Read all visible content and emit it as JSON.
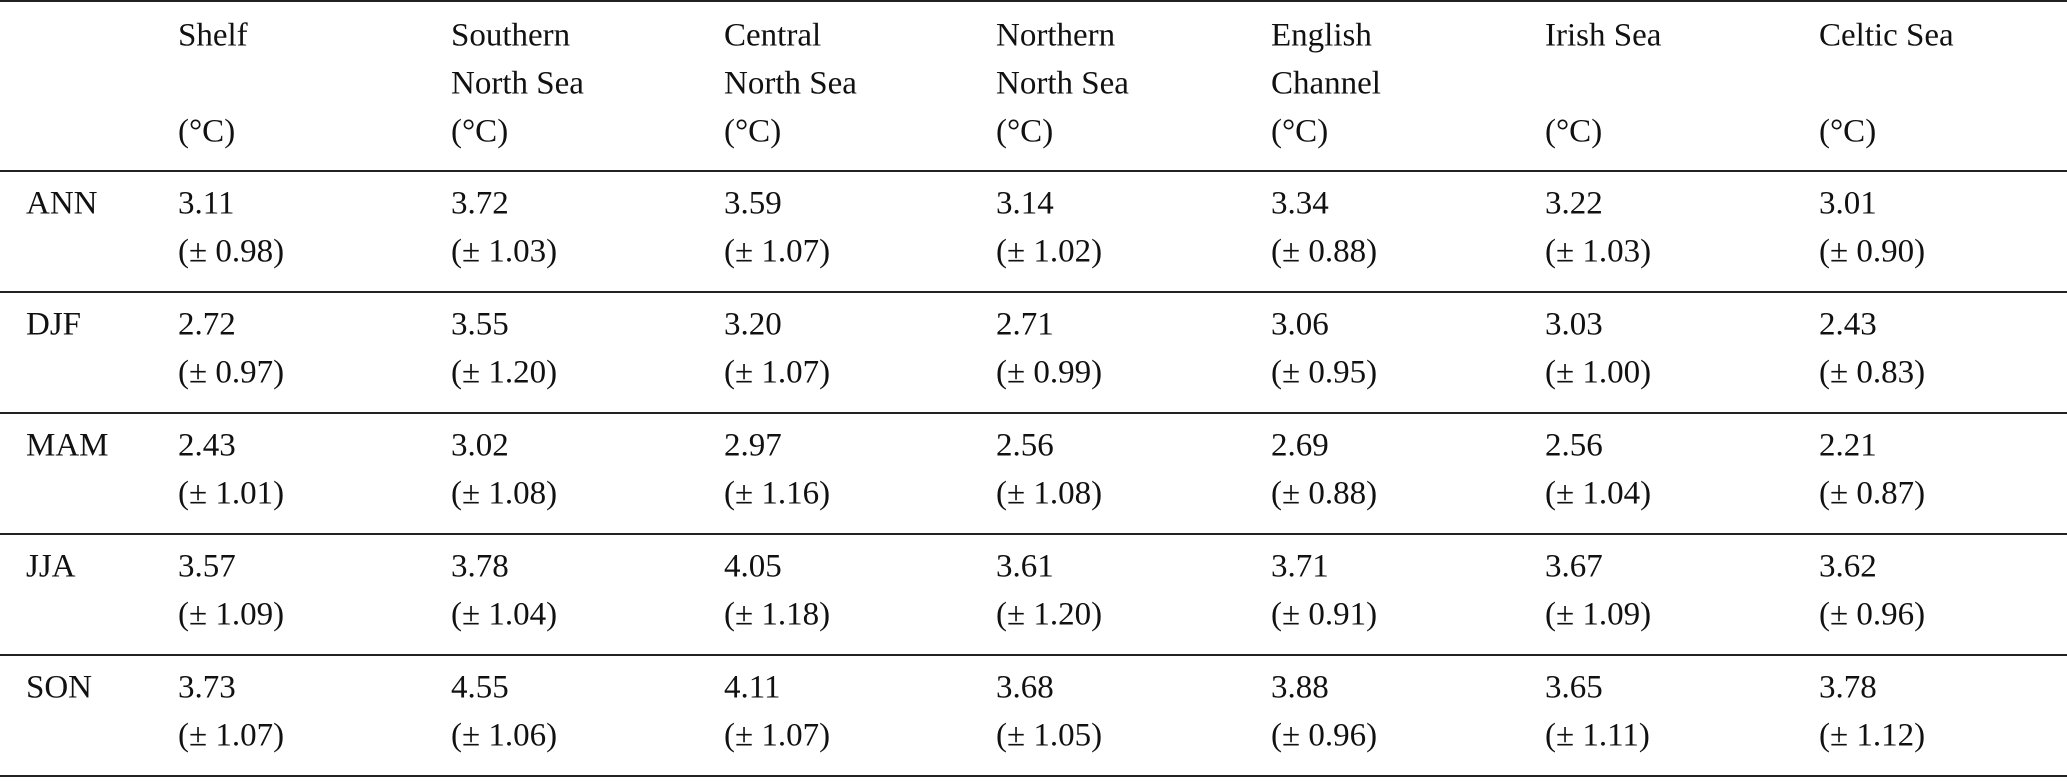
{
  "table": {
    "columns": [
      {
        "name": [
          "Shelf"
        ],
        "unit": "(°C)"
      },
      {
        "name": [
          "Southern",
          "North Sea"
        ],
        "unit": "(°C)"
      },
      {
        "name": [
          "Central",
          "North Sea"
        ],
        "unit": "(°C)"
      },
      {
        "name": [
          "Northern",
          "North Sea"
        ],
        "unit": "(°C)"
      },
      {
        "name": [
          "English",
          "Channel"
        ],
        "unit": "(°C)"
      },
      {
        "name": [
          "Irish Sea"
        ],
        "unit": "(°C)"
      },
      {
        "name": [
          "Celtic Sea"
        ],
        "unit": "(°C)"
      }
    ],
    "rows": [
      {
        "label": "ANN",
        "cells": [
          {
            "value": "3.11",
            "error": "(± 0.98)"
          },
          {
            "value": "3.72",
            "error": "(± 1.03)"
          },
          {
            "value": "3.59",
            "error": "(± 1.07)"
          },
          {
            "value": "3.14",
            "error": "(± 1.02)"
          },
          {
            "value": "3.34",
            "error": "(± 0.88)"
          },
          {
            "value": "3.22",
            "error": "(± 1.03)"
          },
          {
            "value": "3.01",
            "error": "(± 0.90)"
          }
        ]
      },
      {
        "label": "DJF",
        "cells": [
          {
            "value": "2.72",
            "error": "(± 0.97)"
          },
          {
            "value": "3.55",
            "error": "(± 1.20)"
          },
          {
            "value": "3.20",
            "error": "(± 1.07)"
          },
          {
            "value": "2.71",
            "error": "(± 0.99)"
          },
          {
            "value": "3.06",
            "error": "(± 0.95)"
          },
          {
            "value": "3.03",
            "error": "(± 1.00)"
          },
          {
            "value": "2.43",
            "error": "(± 0.83)"
          }
        ]
      },
      {
        "label": "MAM",
        "cells": [
          {
            "value": "2.43",
            "error": "(± 1.01)"
          },
          {
            "value": "3.02",
            "error": "(± 1.08)"
          },
          {
            "value": "2.97",
            "error": "(± 1.16)"
          },
          {
            "value": "2.56",
            "error": "(± 1.08)"
          },
          {
            "value": "2.69",
            "error": "(± 0.88)"
          },
          {
            "value": "2.56",
            "error": "(± 1.04)"
          },
          {
            "value": "2.21",
            "error": "(± 0.87)"
          }
        ]
      },
      {
        "label": "JJA",
        "cells": [
          {
            "value": "3.57",
            "error": "(± 1.09)"
          },
          {
            "value": "3.78",
            "error": "(± 1.04)"
          },
          {
            "value": "4.05",
            "error": "(± 1.18)"
          },
          {
            "value": "3.61",
            "error": "(± 1.20)"
          },
          {
            "value": "3.71",
            "error": "(± 0.91)"
          },
          {
            "value": "3.67",
            "error": "(± 1.09)"
          },
          {
            "value": "3.62",
            "error": "(± 0.96)"
          }
        ]
      },
      {
        "label": "SON",
        "cells": [
          {
            "value": "3.73",
            "error": "(± 1.07)"
          },
          {
            "value": "4.55",
            "error": "(± 1.06)"
          },
          {
            "value": "4.11",
            "error": "(± 1.07)"
          },
          {
            "value": "3.68",
            "error": "(± 1.05)"
          },
          {
            "value": "3.88",
            "error": "(± 0.96)"
          },
          {
            "value": "3.65",
            "error": "(± 1.11)"
          },
          {
            "value": "3.78",
            "error": "(± 1.12)"
          }
        ]
      }
    ]
  }
}
